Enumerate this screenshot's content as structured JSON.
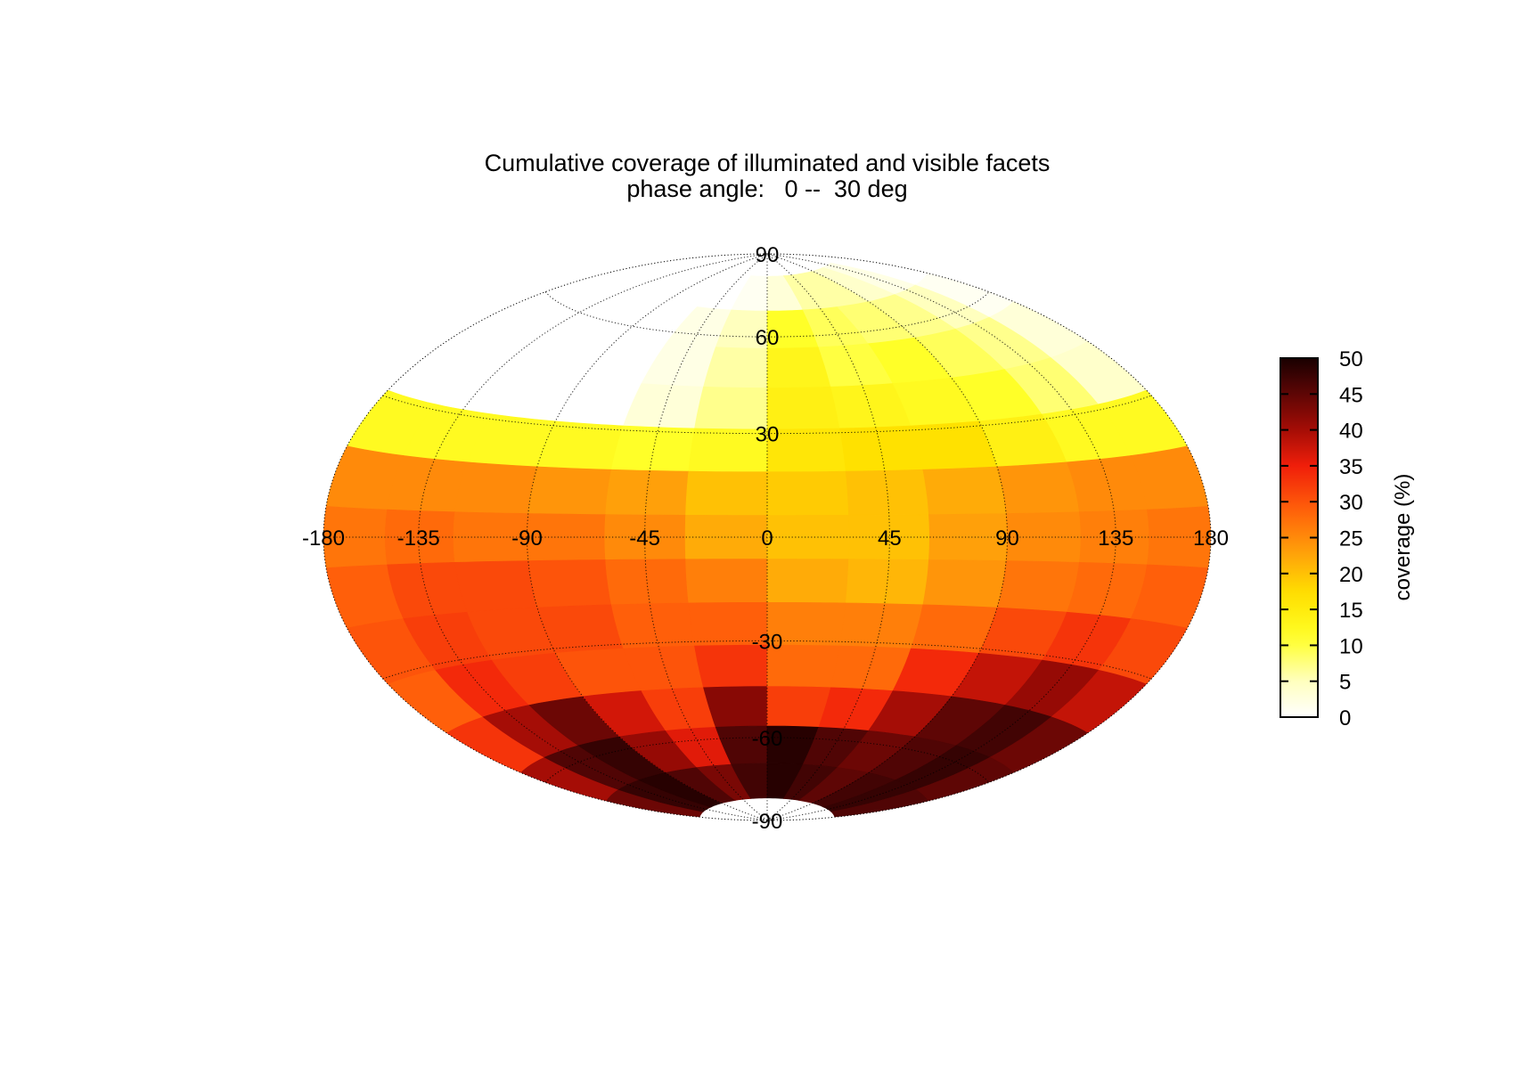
{
  "chart_data": {
    "type": "heatmap",
    "title": "Cumulative coverage of illuminated and visible facets",
    "subtitle": "phase angle:   0 --  30 deg",
    "projection": "hammer-aitoff",
    "grid": true,
    "longitude_ticks": [
      -180,
      -135,
      -90,
      -45,
      0,
      45,
      90,
      135,
      180
    ],
    "latitude_ticks": [
      90,
      60,
      30,
      -30,
      -60,
      -90
    ],
    "colorbar": {
      "label": "coverage (%)",
      "range": [
        0,
        50
      ],
      "ticks": [
        0,
        5,
        10,
        15,
        20,
        25,
        30,
        35,
        40,
        45,
        50
      ],
      "position": "right",
      "colormap": "hot-reversed"
    },
    "lat_bands": [
      75,
      62.5,
      50,
      37.5,
      25,
      12.5,
      0,
      -12.5,
      -25,
      -37.5,
      -50,
      -62.5,
      -75
    ],
    "lon_bins": [
      -165,
      -135,
      -105,
      -75,
      -45,
      -15,
      15,
      45,
      75,
      105,
      135,
      165
    ],
    "values": [
      [
        0,
        0,
        0,
        0,
        0,
        1,
        3,
        6,
        6,
        4,
        2,
        0
      ],
      [
        0,
        0,
        0,
        0,
        2,
        5,
        11,
        9,
        8,
        7,
        5,
        1
      ],
      [
        0,
        0,
        0,
        0,
        2,
        6,
        13,
        10,
        11,
        9,
        7,
        3
      ],
      [
        0,
        0,
        0,
        0,
        3,
        7,
        14,
        13,
        12,
        11,
        8,
        4
      ],
      [
        12,
        12,
        12,
        12,
        11,
        12,
        16,
        17,
        17,
        14,
        12,
        12
      ],
      [
        25,
        25,
        25,
        24,
        23,
        20,
        19,
        20,
        22,
        24,
        25,
        25
      ],
      [
        27,
        28,
        27,
        27,
        25,
        22,
        20,
        20,
        23,
        25,
        26,
        27
      ],
      [
        29,
        31,
        31,
        30,
        28,
        26,
        22,
        21,
        24,
        27,
        28,
        29
      ],
      [
        30,
        32,
        31,
        31,
        29,
        29,
        26,
        26,
        28,
        31,
        33,
        31
      ],
      [
        29,
        34,
        32,
        30,
        30,
        33,
        28,
        28,
        34,
        38,
        41,
        38
      ],
      [
        33,
        40,
        44,
        37,
        32,
        42,
        32,
        34,
        40,
        45,
        47,
        44
      ],
      [
        40,
        46,
        48,
        41,
        36,
        46,
        49,
        46,
        44,
        46,
        48,
        45
      ],
      [
        44,
        48,
        49,
        46,
        43,
        47,
        49,
        47,
        45,
        47,
        48,
        46
      ]
    ]
  }
}
